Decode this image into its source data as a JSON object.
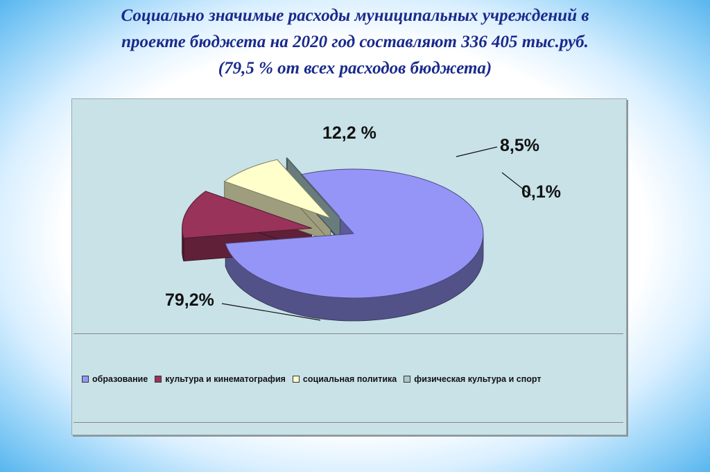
{
  "title": {
    "line1": "Социально значимые расходы муниципальных учреждений в",
    "line2": "проекте бюджета на 2020 год составляют  336 405 тыс.руб.",
    "line3": "(79,5 % от всех расходов бюджета)"
  },
  "chart_data": {
    "type": "pie",
    "style": "3d-exploded",
    "categories": [
      "образование",
      "культура и кинематография",
      "социальная политика",
      "физическая культура и спорт"
    ],
    "values": [
      79.2,
      12.2,
      8.5,
      0.1
    ],
    "data_labels": [
      "79,2%",
      "12,2 %",
      "8,5%",
      "0,1%"
    ],
    "colors": [
      "#9595f8",
      "#99335a",
      "#ffffcc",
      "#aac8c8"
    ],
    "legend_position": "bottom"
  }
}
